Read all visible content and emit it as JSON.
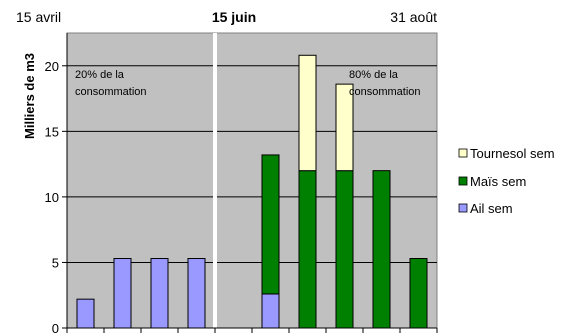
{
  "chart_data": {
    "type": "bar",
    "stacked": true,
    "ylabel": "Milliers de m3",
    "ylim": [
      0,
      22.5
    ],
    "yticks": [
      0,
      5,
      10,
      15,
      20
    ],
    "top_labels": {
      "left": "15 avril",
      "center": "15 juin",
      "right": "31 août"
    },
    "annotations": {
      "left": [
        "20% de la",
        "consommation"
      ],
      "right": [
        "80% de la",
        "consommation"
      ]
    },
    "legend_position": "right",
    "series": [
      {
        "name": "Tournesol sem",
        "color": "#ffffcc",
        "values": [
          0,
          0,
          0,
          0,
          0,
          0,
          8.8,
          6.6,
          0,
          0
        ]
      },
      {
        "name": "Maïs sem",
        "color": "#008000",
        "values": [
          0,
          0,
          0,
          0,
          0,
          10.6,
          12,
          12,
          12,
          5.3
        ]
      },
      {
        "name": "Ail sem",
        "color": "#9999ff",
        "values": [
          2.2,
          5.3,
          5.3,
          5.3,
          0,
          2.6,
          0,
          0,
          0,
          0
        ]
      }
    ],
    "background_color": "#c0c0c0",
    "grid": true,
    "divider_after_bar_index": 4
  }
}
